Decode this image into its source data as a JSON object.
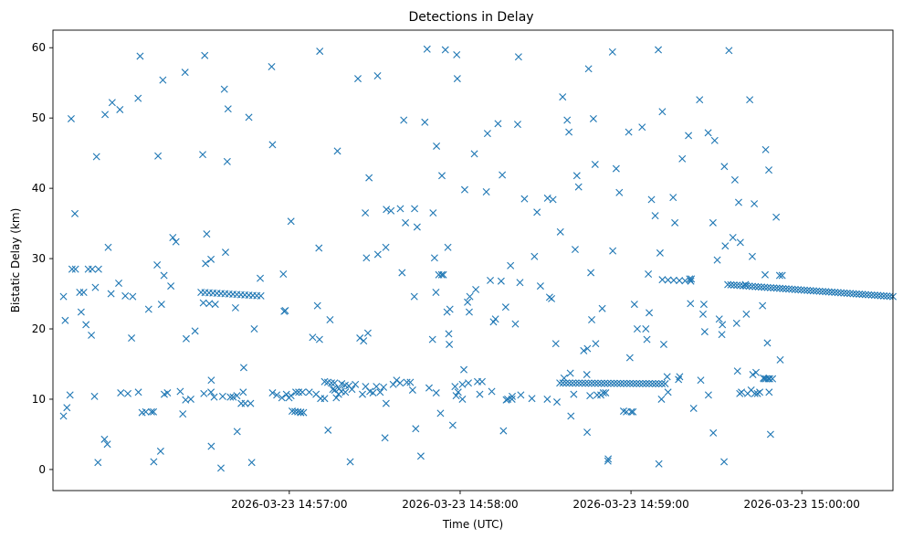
{
  "chart_data": {
    "type": "scatter",
    "title": "Detections in Delay",
    "xlabel": "Time (UTC)",
    "ylabel": "Bistatic Delay (km)",
    "marker": "x",
    "marker_color": "#1f77b4",
    "x_units": "seconds after 2026-03-23 14:56:00 UTC",
    "xlim": [
      -23,
      272
    ],
    "ylim": [
      -3,
      62.5
    ],
    "x_ticks": [
      {
        "value": 60,
        "label": "2026-03-23 14:57:00"
      },
      {
        "value": 120,
        "label": "2026-03-23 14:58:00"
      },
      {
        "value": 180,
        "label": "2026-03-23 14:59:00"
      },
      {
        "value": 240,
        "label": "2026-03-23 15:00:00"
      },
      {
        "value": 300,
        "label": "2026-03-23 15:01:00"
      }
    ],
    "y_ticks": [
      {
        "value": 0,
        "label": "0"
      },
      {
        "value": 10,
        "label": "10"
      },
      {
        "value": 20,
        "label": "20"
      },
      {
        "value": 30,
        "label": "30"
      },
      {
        "value": 40,
        "label": "40"
      },
      {
        "value": 50,
        "label": "50"
      },
      {
        "value": 60,
        "label": "60"
      }
    ],
    "tracks": [
      {
        "name": "track-a-upper",
        "x_start": 29,
        "x_end": 50,
        "y_start": 25.2,
        "y_end": 24.7,
        "count": 16
      },
      {
        "name": "track-a-lower",
        "x_start": 61,
        "x_end": 65,
        "y_start": 8.3,
        "y_end": 8.1,
        "count": 5
      },
      {
        "name": "track-b-lower",
        "x_start": 155,
        "x_end": 192,
        "y_start": 12.3,
        "y_end": 12.2,
        "count": 34
      },
      {
        "name": "track-b-upper",
        "x_start": 191,
        "x_end": 201,
        "y_start": 27.0,
        "y_end": 26.8,
        "count": 6
      },
      {
        "name": "track-c-upper",
        "x_start": 214,
        "x_end": 272,
        "y_start": 26.3,
        "y_end": 24.6,
        "count": 55
      },
      {
        "name": "track-d-upper",
        "x_start": 279,
        "x_end": 300,
        "y_start": 24.8,
        "y_end": 24.1,
        "count": 24
      },
      {
        "name": "track-e-upper",
        "x_start": 330,
        "x_end": 347,
        "y_start": 27.7,
        "y_end": 27.7,
        "count": 5
      }
    ],
    "points": [
      [
        -19.3,
        7.6
      ],
      [
        -19.3,
        24.6
      ],
      [
        -18.7,
        21.2
      ],
      [
        -18.1,
        8.8
      ],
      [
        -17.0,
        10.6
      ],
      [
        -16.6,
        49.9
      ],
      [
        -16.3,
        28.5
      ],
      [
        -15.1,
        28.5
      ],
      [
        -15.3,
        36.4
      ],
      [
        -13.6,
        25.2
      ],
      [
        -13.1,
        22.4
      ],
      [
        -12.2,
        25.2
      ],
      [
        -11.4,
        20.6
      ],
      [
        -10.6,
        28.5
      ],
      [
        -9.5,
        19.1
      ],
      [
        -9.2,
        28.5
      ],
      [
        -8.4,
        10.4
      ],
      [
        -8.1,
        25.9
      ],
      [
        -7.2,
        1.0
      ],
      [
        -7.7,
        44.5
      ],
      [
        -7.0,
        28.5
      ],
      [
        -4.9,
        4.3
      ],
      [
        -4.7,
        50.5
      ],
      [
        -3.9,
        3.6
      ],
      [
        -3.6,
        31.6
      ],
      [
        -2.6,
        25.0
      ],
      [
        -2.2,
        52.2
      ],
      [
        0.1,
        26.5
      ],
      [
        0.5,
        51.2
      ],
      [
        0.8,
        10.9
      ],
      [
        2.4,
        24.7
      ],
      [
        3.3,
        10.8
      ],
      [
        4.6,
        18.7
      ],
      [
        5.0,
        24.6
      ],
      [
        6.9,
        52.8
      ],
      [
        7.0,
        11.0
      ],
      [
        7.6,
        58.8
      ],
      [
        10.6,
        22.8
      ],
      [
        12.4,
        1.1
      ],
      [
        13.6,
        29.1
      ],
      [
        13.9,
        44.6
      ],
      [
        14.8,
        2.6
      ],
      [
        15.1,
        23.5
      ],
      [
        15.6,
        55.4
      ],
      [
        16.1,
        10.7
      ],
      [
        16.0,
        27.6
      ],
      [
        17.2,
        10.9
      ],
      [
        18.4,
        26.1
      ],
      [
        19.1,
        33.0
      ],
      [
        20.2,
        32.4
      ],
      [
        21.7,
        11.1
      ],
      [
        22.6,
        7.9
      ],
      [
        23.4,
        56.5
      ],
      [
        23.6,
        9.9
      ],
      [
        23.8,
        18.6
      ],
      [
        25.4,
        10.0
      ],
      [
        26.9,
        19.7
      ],
      [
        29.8,
        23.7
      ],
      [
        29.6,
        44.8
      ],
      [
        30.0,
        10.8
      ],
      [
        30.3,
        58.9
      ],
      [
        30.6,
        29.3
      ],
      [
        31.0,
        33.5
      ],
      [
        31.9,
        23.6
      ],
      [
        32.5,
        11.0
      ],
      [
        32.6,
        12.7
      ],
      [
        32.5,
        29.9
      ],
      [
        32.6,
        3.3
      ],
      [
        33.6,
        10.3
      ],
      [
        34.0,
        23.5
      ],
      [
        36.0,
        0.2
      ],
      [
        36.6,
        10.4
      ],
      [
        37.2,
        54.1
      ],
      [
        37.6,
        30.9
      ],
      [
        38.2,
        43.8
      ],
      [
        38.5,
        51.3
      ],
      [
        39.3,
        10.3
      ],
      [
        40.3,
        10.3
      ],
      [
        41.1,
        23.0
      ],
      [
        41.6,
        10.5
      ],
      [
        41.7,
        5.4
      ],
      [
        43.1,
        9.4
      ],
      [
        43.8,
        11.0
      ],
      [
        44.0,
        14.5
      ],
      [
        44.5,
        9.4
      ],
      [
        45.8,
        50.1
      ],
      [
        46.4,
        9.4
      ],
      [
        46.8,
        1.0
      ],
      [
        47.7,
        20.0
      ],
      [
        49.8,
        27.2
      ],
      [
        53.8,
        57.3
      ],
      [
        54.1,
        46.2
      ],
      [
        54.1,
        10.9
      ],
      [
        55.6,
        10.6
      ],
      [
        57.4,
        10.2
      ],
      [
        57.9,
        27.8
      ],
      [
        58.2,
        22.5
      ],
      [
        58.6,
        22.6
      ],
      [
        59.0,
        10.7
      ],
      [
        60.6,
        10.5
      ],
      [
        60.6,
        35.3
      ],
      [
        62.3,
        11.0
      ],
      [
        63.3,
        11.0
      ],
      [
        64.6,
        11.0
      ],
      [
        67.0,
        11.0
      ],
      [
        68.2,
        18.8
      ],
      [
        69.4,
        10.7
      ],
      [
        69.9,
        23.3
      ],
      [
        70.4,
        31.5
      ],
      [
        70.6,
        18.5
      ],
      [
        70.7,
        59.5
      ],
      [
        71.0,
        10.1
      ],
      [
        72.4,
        10.1
      ],
      [
        73.6,
        5.6
      ],
      [
        74.3,
        21.3
      ],
      [
        75.3,
        11.4
      ],
      [
        76.0,
        11.3
      ],
      [
        76.5,
        10.2
      ],
      [
        76.9,
        45.3
      ],
      [
        77.5,
        11.5
      ],
      [
        78.3,
        11.1
      ],
      [
        79.7,
        11.0
      ],
      [
        81.4,
        1.1
      ],
      [
        84.1,
        55.6
      ],
      [
        84.8,
        18.7
      ],
      [
        86.1,
        18.3
      ],
      [
        86.7,
        36.5
      ],
      [
        87.1,
        30.1
      ],
      [
        87.6,
        19.4
      ],
      [
        88.0,
        41.5
      ],
      [
        91.0,
        56.0
      ],
      [
        91.1,
        30.6
      ],
      [
        93.6,
        4.5
      ],
      [
        93.9,
        31.6
      ],
      [
        94.0,
        9.4
      ],
      [
        94.1,
        37.0
      ],
      [
        95.7,
        36.8
      ],
      [
        99.0,
        37.1
      ],
      [
        99.6,
        28.0
      ],
      [
        100.2,
        49.7
      ],
      [
        100.8,
        35.1
      ],
      [
        103.3,
        11.3
      ],
      [
        103.9,
        24.6
      ],
      [
        104.0,
        37.1
      ],
      [
        104.4,
        5.8
      ],
      [
        104.9,
        34.5
      ],
      [
        106.2,
        1.9
      ],
      [
        107.6,
        49.4
      ],
      [
        108.4,
        59.8
      ],
      [
        109.1,
        11.6
      ],
      [
        110.3,
        18.5
      ],
      [
        110.5,
        36.5
      ],
      [
        111.0,
        30.1
      ],
      [
        111.5,
        25.2
      ],
      [
        111.6,
        10.9
      ],
      [
        111.7,
        46.0
      ],
      [
        112.5,
        27.7
      ],
      [
        113.1,
        8.0
      ],
      [
        113.5,
        27.7
      ],
      [
        113.6,
        41.8
      ],
      [
        114.1,
        27.7
      ],
      [
        114.8,
        59.7
      ],
      [
        115.4,
        22.4
      ],
      [
        115.7,
        31.6
      ],
      [
        116.0,
        19.3
      ],
      [
        116.2,
        17.8
      ],
      [
        116.4,
        22.8
      ],
      [
        117.4,
        6.3
      ],
      [
        118.6,
        10.5
      ],
      [
        118.8,
        59.0
      ],
      [
        119.0,
        55.6
      ],
      [
        119.3,
        11.0
      ],
      [
        120.8,
        10.0
      ],
      [
        121.3,
        14.2
      ],
      [
        121.6,
        39.8
      ],
      [
        122.6,
        23.8
      ],
      [
        123.2,
        22.4
      ],
      [
        123.4,
        24.6
      ],
      [
        125.0,
        44.9
      ],
      [
        125.5,
        25.6
      ],
      [
        126.9,
        10.7
      ],
      [
        129.2,
        39.5
      ],
      [
        129.6,
        47.8
      ],
      [
        130.6,
        26.9
      ],
      [
        131.1,
        11.1
      ],
      [
        131.7,
        21.0
      ],
      [
        132.4,
        21.4
      ],
      [
        133.3,
        49.2
      ],
      [
        134.4,
        26.8
      ],
      [
        134.8,
        41.9
      ],
      [
        135.2,
        5.5
      ],
      [
        136.0,
        23.1
      ],
      [
        136.2,
        9.9
      ],
      [
        136.7,
        10.0
      ],
      [
        137.7,
        29.0
      ],
      [
        138.2,
        10.0
      ],
      [
        138.3,
        10.4
      ],
      [
        139.4,
        20.7
      ],
      [
        140.2,
        49.1
      ],
      [
        140.5,
        58.7
      ],
      [
        141.0,
        26.6
      ],
      [
        141.3,
        10.6
      ],
      [
        142.6,
        38.5
      ],
      [
        145.2,
        10.1
      ],
      [
        146.1,
        30.3
      ],
      [
        147.0,
        36.6
      ],
      [
        148.2,
        26.1
      ],
      [
        150.6,
        10.0
      ],
      [
        150.7,
        38.6
      ],
      [
        151.4,
        24.5
      ],
      [
        152.1,
        24.3
      ],
      [
        152.6,
        38.4
      ],
      [
        153.6,
        17.9
      ],
      [
        154.0,
        9.6
      ],
      [
        155.2,
        33.8
      ],
      [
        156.0,
        53.0
      ],
      [
        156.5,
        13.0
      ],
      [
        157.6,
        49.7
      ],
      [
        158.2,
        48.0
      ],
      [
        158.7,
        13.7
      ],
      [
        158.9,
        7.6
      ],
      [
        159.9,
        10.7
      ],
      [
        160.4,
        31.3
      ],
      [
        161.0,
        41.8
      ],
      [
        161.6,
        40.2
      ],
      [
        163.4,
        16.9
      ],
      [
        164.5,
        13.5
      ],
      [
        164.6,
        5.3
      ],
      [
        164.7,
        17.2
      ],
      [
        165.1,
        57.0
      ],
      [
        165.6,
        10.5
      ],
      [
        165.9,
        28.0
      ],
      [
        166.2,
        21.3
      ],
      [
        166.8,
        49.9
      ],
      [
        167.4,
        43.4
      ],
      [
        167.6,
        17.9
      ],
      [
        168.1,
        10.6
      ],
      [
        169.4,
        10.6
      ],
      [
        169.9,
        22.9
      ],
      [
        170.3,
        10.9
      ],
      [
        171.1,
        10.9
      ],
      [
        171.9,
        1.2
      ],
      [
        172.0,
        1.5
      ],
      [
        173.5,
        59.4
      ],
      [
        173.6,
        31.1
      ],
      [
        174.8,
        42.8
      ],
      [
        175.9,
        39.4
      ],
      [
        177.4,
        8.3
      ],
      [
        178.4,
        8.2
      ],
      [
        179.2,
        48.0
      ],
      [
        179.6,
        15.9
      ],
      [
        180.1,
        8.2
      ],
      [
        180.7,
        8.2
      ],
      [
        181.2,
        23.5
      ],
      [
        182.2,
        20.0
      ],
      [
        183.9,
        48.7
      ],
      [
        185.2,
        20.0
      ],
      [
        185.6,
        18.5
      ],
      [
        186.1,
        27.8
      ],
      [
        186.4,
        22.3
      ],
      [
        187.2,
        38.4
      ],
      [
        188.5,
        36.1
      ],
      [
        189.6,
        59.7
      ],
      [
        189.8,
        0.8
      ],
      [
        190.2,
        30.8
      ],
      [
        190.7,
        10.0
      ],
      [
        191.0,
        50.9
      ],
      [
        191.5,
        17.8
      ],
      [
        192.7,
        13.2
      ],
      [
        193.0,
        11.0
      ],
      [
        194.8,
        38.7
      ],
      [
        195.4,
        35.1
      ],
      [
        196.7,
        12.8
      ],
      [
        197.1,
        13.2
      ],
      [
        198.0,
        44.2
      ],
      [
        200.2,
        47.5
      ],
      [
        200.6,
        27.1
      ],
      [
        200.9,
        23.6
      ],
      [
        201.2,
        27.1
      ],
      [
        202.0,
        8.7
      ],
      [
        204.1,
        52.6
      ],
      [
        204.5,
        12.7
      ],
      [
        205.3,
        22.1
      ],
      [
        205.6,
        23.5
      ],
      [
        205.9,
        19.6
      ],
      [
        207.1,
        47.9
      ],
      [
        207.2,
        10.6
      ],
      [
        208.8,
        35.1
      ],
      [
        208.9,
        5.2
      ],
      [
        209.4,
        46.8
      ],
      [
        210.3,
        29.8
      ],
      [
        211.0,
        21.4
      ],
      [
        211.9,
        19.2
      ],
      [
        212.1,
        20.6
      ],
      [
        212.7,
        1.1
      ],
      [
        212.8,
        43.1
      ],
      [
        213.1,
        31.8
      ],
      [
        214.4,
        59.6
      ],
      [
        215.8,
        33.0
      ],
      [
        216.5,
        41.2
      ],
      [
        217.1,
        20.8
      ],
      [
        217.4,
        14.0
      ],
      [
        217.8,
        38.0
      ],
      [
        218.2,
        10.8
      ],
      [
        218.4,
        32.3
      ],
      [
        218.8,
        11.0
      ],
      [
        220.2,
        26.3
      ],
      [
        220.5,
        22.1
      ],
      [
        221.0,
        10.8
      ],
      [
        221.7,
        52.6
      ],
      [
        222.2,
        11.3
      ],
      [
        222.6,
        30.3
      ],
      [
        222.8,
        13.5
      ],
      [
        223.3,
        37.8
      ],
      [
        223.5,
        10.8
      ],
      [
        223.9,
        13.8
      ],
      [
        224.4,
        10.8
      ],
      [
        225.2,
        11.0
      ],
      [
        226.2,
        23.3
      ],
      [
        226.5,
        13.0
      ],
      [
        226.8,
        12.9
      ],
      [
        227.1,
        27.7
      ],
      [
        227.3,
        45.5
      ],
      [
        227.4,
        12.9
      ],
      [
        227.9,
        18.0
      ],
      [
        228.2,
        12.9
      ],
      [
        228.4,
        42.6
      ],
      [
        228.5,
        11.0
      ],
      [
        228.7,
        12.9
      ],
      [
        229.0,
        5.0
      ],
      [
        229.7,
        12.9
      ],
      [
        231.0,
        35.9
      ],
      [
        232.2,
        27.6
      ],
      [
        232.4,
        15.6
      ],
      [
        233.1,
        27.6
      ],
      [
        64.0,
        8.1
      ],
      [
        9.6,
        8.2
      ],
      [
        8.3,
        8.1
      ],
      [
        11.6,
        8.2
      ],
      [
        12.3,
        8.2
      ],
      [
        59.9,
        10.2
      ],
      [
        118.2,
        11.8
      ],
      [
        120.8,
        12.1
      ],
      [
        122.9,
        12.3
      ],
      [
        126.1,
        12.5
      ],
      [
        127.7,
        12.5
      ],
      [
        89.4,
        10.9
      ],
      [
        90.6,
        11.8
      ],
      [
        91.9,
        11.0
      ],
      [
        93.1,
        11.7
      ],
      [
        96.5,
        12.1
      ],
      [
        97.7,
        12.7
      ],
      [
        98.9,
        12.3
      ],
      [
        101.3,
        12.4
      ],
      [
        102.5,
        12.4
      ],
      [
        78.4,
        12.2
      ],
      [
        79.6,
        12.0
      ],
      [
        80.9,
        11.9
      ],
      [
        82.0,
        11.4
      ],
      [
        83.2,
        12.1
      ],
      [
        85.7,
        10.7
      ],
      [
        86.8,
        11.8
      ],
      [
        88.3,
        11.1
      ],
      [
        72.4,
        12.5
      ],
      [
        73.5,
        12.4
      ],
      [
        74.8,
        12.3
      ],
      [
        75.9,
        12.3
      ],
      [
        77.3,
        10.7
      ]
    ]
  }
}
